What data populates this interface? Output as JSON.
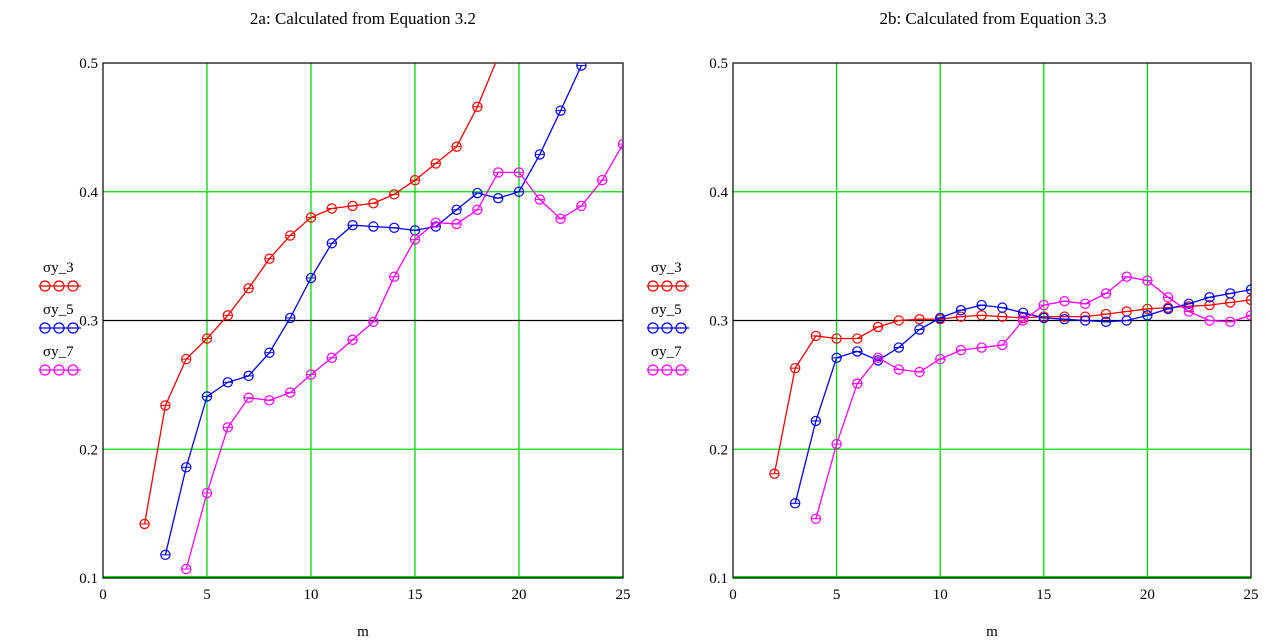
{
  "chart_data": [
    {
      "type": "line",
      "title": "2a: Calculated from Equation 3.2",
      "xlabel": "m",
      "ylabel": "",
      "xlim": [
        0,
        25
      ],
      "ylim": [
        0.1,
        0.5
      ],
      "xticks": [
        "0",
        "5",
        "10",
        "15",
        "20",
        "25"
      ],
      "yticks": [
        "0.1",
        "0.2",
        "0.3",
        "0.4",
        "0.5"
      ],
      "grid": true,
      "reference_line": 0.3,
      "legend_placement": "left",
      "series": [
        {
          "name": "σy_3",
          "color": "#ff0000",
          "x": [
            2,
            3,
            4,
            5,
            6,
            7,
            8,
            9,
            10,
            11,
            12,
            13,
            14,
            15,
            16,
            17,
            18,
            19
          ],
          "y": [
            0.142,
            0.234,
            0.27,
            0.286,
            0.304,
            0.325,
            0.348,
            0.366,
            0.38,
            0.387,
            0.389,
            0.391,
            0.398,
            0.409,
            0.422,
            0.435,
            0.466,
            0.505
          ]
        },
        {
          "name": "σy_5",
          "color": "#0000ff",
          "x": [
            3,
            4,
            5,
            6,
            7,
            8,
            9,
            10,
            11,
            12,
            13,
            14,
            15,
            16,
            17,
            18,
            19,
            20,
            21,
            22,
            23
          ],
          "y": [
            0.118,
            0.186,
            0.241,
            0.252,
            0.257,
            0.275,
            0.302,
            0.333,
            0.36,
            0.374,
            0.373,
            0.372,
            0.37,
            0.373,
            0.386,
            0.399,
            0.395,
            0.4,
            0.429,
            0.463,
            0.498
          ]
        },
        {
          "name": "σy_7",
          "color": "#ff00ff",
          "x": [
            4,
            5,
            6,
            7,
            8,
            9,
            10,
            11,
            12,
            13,
            14,
            15,
            16,
            17,
            18,
            19,
            20,
            21,
            22,
            23,
            24,
            25
          ],
          "y": [
            0.107,
            0.166,
            0.217,
            0.24,
            0.238,
            0.244,
            0.258,
            0.271,
            0.285,
            0.299,
            0.334,
            0.363,
            0.376,
            0.375,
            0.386,
            0.415,
            0.415,
            0.394,
            0.379,
            0.389,
            0.409,
            0.437
          ]
        }
      ]
    },
    {
      "type": "line",
      "title": "2b: Calculated from Equation 3.3",
      "xlabel": "m",
      "ylabel": "",
      "xlim": [
        0,
        25
      ],
      "ylim": [
        0.1,
        0.5
      ],
      "xticks": [
        "0",
        "5",
        "10",
        "15",
        "20",
        "25"
      ],
      "yticks": [
        "0.1",
        "0.2",
        "0.3",
        "0.4",
        "0.5"
      ],
      "grid": true,
      "reference_line": 0.3,
      "legend_placement": "left",
      "series": [
        {
          "name": "σy_3",
          "color": "#ff0000",
          "x": [
            2,
            3,
            4,
            5,
            6,
            7,
            8,
            9,
            10,
            11,
            12,
            13,
            14,
            15,
            16,
            17,
            18,
            19,
            20,
            21,
            22,
            23,
            24,
            25
          ],
          "y": [
            0.181,
            0.263,
            0.288,
            0.286,
            0.286,
            0.295,
            0.3,
            0.301,
            0.301,
            0.303,
            0.304,
            0.303,
            0.302,
            0.303,
            0.303,
            0.303,
            0.305,
            0.307,
            0.309,
            0.31,
            0.311,
            0.312,
            0.314,
            0.316
          ]
        },
        {
          "name": "σy_5",
          "color": "#0000ff",
          "x": [
            3,
            4,
            5,
            6,
            7,
            8,
            9,
            10,
            11,
            12,
            13,
            14,
            15,
            16,
            17,
            18,
            19,
            20,
            21,
            22,
            23,
            24,
            25
          ],
          "y": [
            0.158,
            0.222,
            0.271,
            0.276,
            0.269,
            0.279,
            0.293,
            0.302,
            0.308,
            0.312,
            0.31,
            0.306,
            0.302,
            0.301,
            0.3,
            0.299,
            0.3,
            0.304,
            0.309,
            0.313,
            0.318,
            0.321,
            0.324
          ]
        },
        {
          "name": "σy_7",
          "color": "#ff00ff",
          "x": [
            4,
            5,
            6,
            7,
            8,
            9,
            10,
            11,
            12,
            13,
            14,
            15,
            16,
            17,
            18,
            19,
            20,
            21,
            22,
            23,
            24,
            25
          ],
          "y": [
            0.146,
            0.204,
            0.251,
            0.271,
            0.262,
            0.26,
            0.27,
            0.277,
            0.279,
            0.281,
            0.3,
            0.312,
            0.315,
            0.313,
            0.321,
            0.334,
            0.331,
            0.318,
            0.307,
            0.3,
            0.299,
            0.304
          ]
        }
      ]
    }
  ]
}
